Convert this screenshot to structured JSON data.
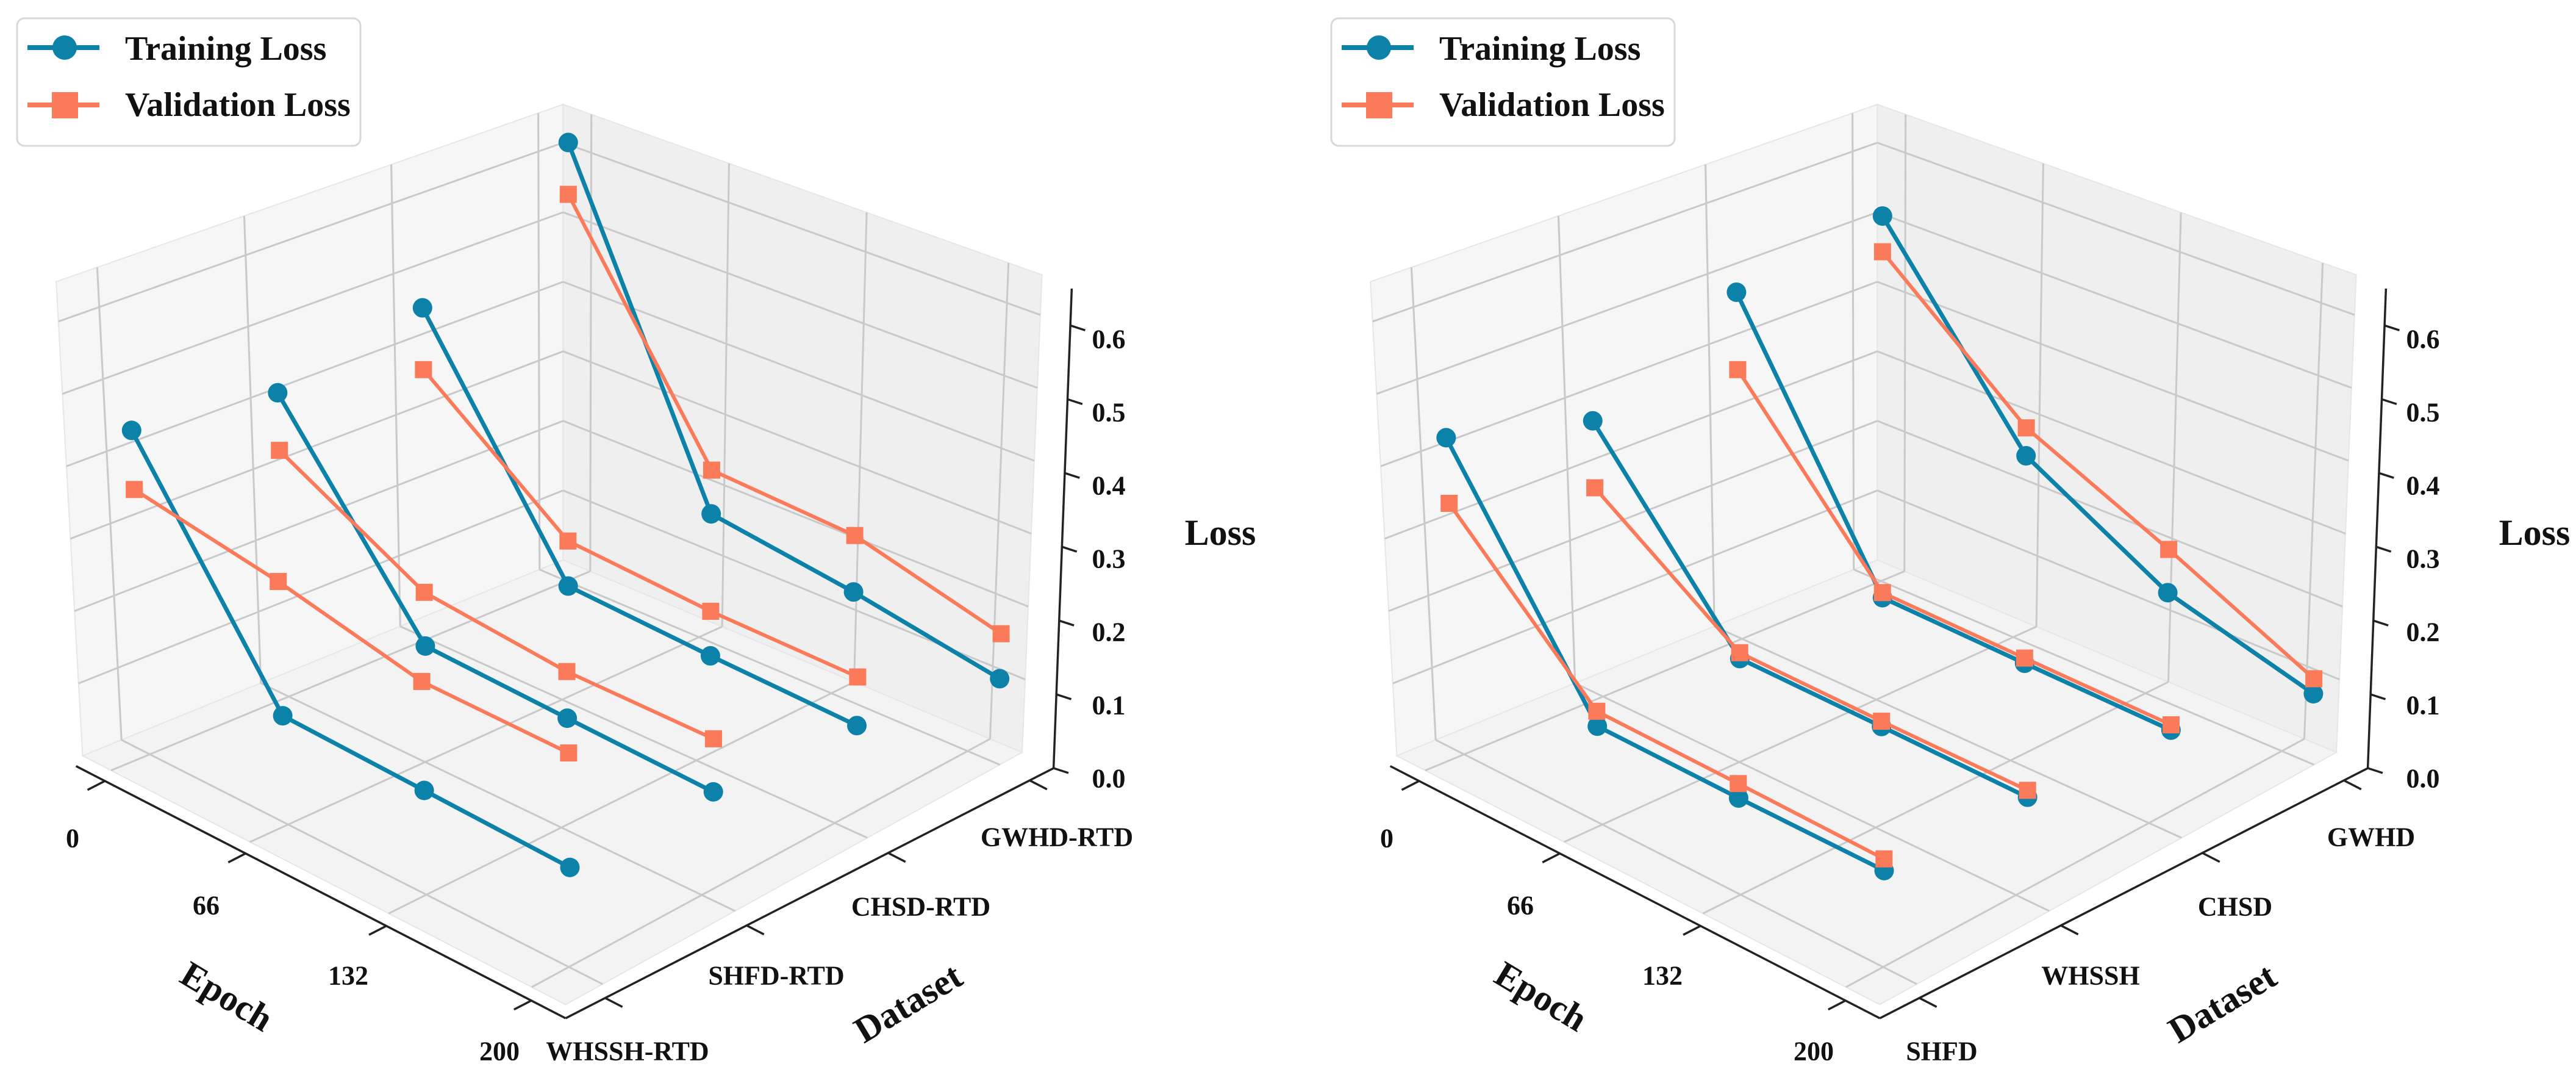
{
  "chart_data": [
    {
      "type": "line3d",
      "legend": [
        "Training Loss",
        "Validation Loss"
      ],
      "legend_placement": "top-left",
      "xlabel": "Epoch",
      "ylabel": "Dataset",
      "zlabel": "Loss",
      "x_ticks": [
        0,
        66,
        132,
        200
      ],
      "x_tick_labels": [
        "0",
        "66",
        "132",
        "200"
      ],
      "y_categories": [
        "WHSSH-RTD",
        "SHFD-RTD",
        "CHSD-RTD",
        "GWHD-RTD"
      ],
      "z_tick_labels": [
        "0.0",
        "0.1",
        "0.2",
        "0.3",
        "0.4",
        "0.5",
        "0.6"
      ],
      "zlim": [
        0,
        0.65
      ],
      "grid": true,
      "series": [
        {
          "name": "Training Loss",
          "color": "#0c82a9",
          "marker": "circle",
          "values": [
            [
              0.449,
              0.154,
              0.148,
              0.142
            ],
            [
              0.426,
              0.166,
              0.158,
              0.151
            ],
            [
              0.469,
              0.165,
              0.155,
              0.148
            ],
            [
              0.628,
              0.181,
              0.154,
              0.119
            ]
          ]
        },
        {
          "name": "Validation Loss",
          "color": "#fa7a5a",
          "marker": "square",
          "values": [
            [
              0.368,
              0.334,
              0.291,
              0.289
            ],
            [
              0.346,
              0.239,
              0.22,
              0.22
            ],
            [
              0.382,
              0.227,
              0.215,
              0.212
            ],
            [
              0.554,
              0.242,
              0.231,
              0.179
            ]
          ]
        }
      ]
    },
    {
      "type": "line3d",
      "legend": [
        "Training Loss",
        "Validation Loss"
      ],
      "legend_placement": "top-left",
      "xlabel": "Epoch",
      "ylabel": "Dataset",
      "zlabel": "Loss",
      "x_ticks": [
        0,
        66,
        132,
        200
      ],
      "x_tick_labels": [
        "0",
        "66",
        "132",
        "200"
      ],
      "y_categories": [
        "SHFD",
        "WHSSH",
        "CHSD",
        "GWHD"
      ],
      "z_tick_labels": [
        "0.0",
        "0.1",
        "0.2",
        "0.3",
        "0.4",
        "0.5",
        "0.6"
      ],
      "zlim": [
        0,
        0.65
      ],
      "grid": true,
      "series": [
        {
          "name": "Training Loss",
          "color": "#0c82a9",
          "marker": "circle",
          "values": [
            [
              0.439,
              0.14,
              0.138,
              0.138
            ],
            [
              0.387,
              0.149,
              0.147,
              0.144
            ],
            [
              0.491,
              0.149,
              0.145,
              0.142
            ],
            [
              0.523,
              0.262,
              0.153,
              0.099
            ]
          ]
        },
        {
          "name": "Validation Loss",
          "color": "#fa7a5a",
          "marker": "square",
          "values": [
            [
              0.349,
              0.16,
              0.157,
              0.153
            ],
            [
              0.294,
              0.157,
              0.154,
              0.153
            ],
            [
              0.382,
              0.156,
              0.152,
              0.149
            ],
            [
              0.472,
              0.301,
              0.212,
              0.119
            ]
          ]
        }
      ]
    }
  ]
}
